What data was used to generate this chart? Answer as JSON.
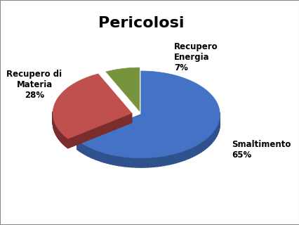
{
  "title": "Pericolosi",
  "slices": [
    65,
    28,
    7
  ],
  "labels": [
    "Smaltimento\n65%",
    "Recupero di\nMateria\n28%",
    "Recupero\nEnergia\n7%"
  ],
  "colors": [
    "#4472C4",
    "#C0504D",
    "#77933C"
  ],
  "dark_colors": [
    "#2F528F",
    "#7B2C2C",
    "#4F6228"
  ],
  "explode": [
    0.0,
    0.12,
    0.08
  ],
  "startangle": 90,
  "title_fontsize": 16,
  "label_fontsize": 8.5,
  "background_color": "#FFFFFF",
  "border_color": "#888888",
  "depth": 0.12,
  "yscale": 0.55
}
